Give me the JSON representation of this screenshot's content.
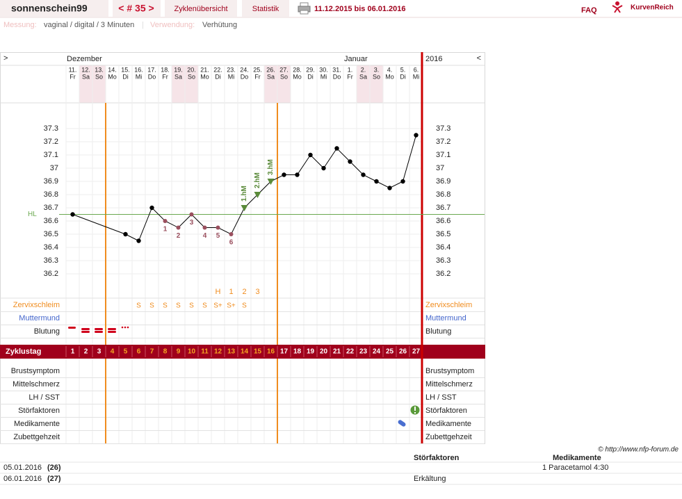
{
  "header": {
    "user": "sonnenschein99",
    "cycle": "< # 35 >",
    "tabs": [
      "Zyklenübersicht",
      "Statistik"
    ],
    "range": "11.12.2015 bis 06.01.2016",
    "faq": "FAQ",
    "brand": "KurvenReich",
    "measure_label": "Messung:",
    "measure": "vaginal / digital / 3 Minuten",
    "separator": "|",
    "use_label": "Verwendung:",
    "use": "Verhütung"
  },
  "chart_data": {
    "type": "line",
    "nav_prev": ">",
    "nav_next": "<",
    "year": "2016",
    "months": [
      {
        "label": "Dezember",
        "start_day": 1
      },
      {
        "label": "Januar",
        "start_day": 22
      }
    ],
    "dates": [
      "11.",
      "12.",
      "13.",
      "14.",
      "15.",
      "16.",
      "17.",
      "18.",
      "19.",
      "20.",
      "21.",
      "22.",
      "23.",
      "24.",
      "25.",
      "26.",
      "27.",
      "28.",
      "29.",
      "30.",
      "31.",
      "1.",
      "2.",
      "3.",
      "4.",
      "5.",
      "6."
    ],
    "weekdays": [
      "Fr",
      "Sa",
      "So",
      "Mo",
      "Di",
      "Mi",
      "Do",
      "Fr",
      "Sa",
      "So",
      "Mo",
      "Di",
      "Mi",
      "Do",
      "Fr",
      "Sa",
      "So",
      "Mo",
      "Di",
      "Mi",
      "Do",
      "Fr",
      "Sa",
      "So",
      "Mo",
      "Di",
      "Mi"
    ],
    "weekend_days": [
      2,
      3,
      9,
      10,
      16,
      17,
      23,
      24
    ],
    "cycle_days": [
      1,
      2,
      3,
      4,
      5,
      6,
      7,
      8,
      9,
      10,
      11,
      12,
      13,
      14,
      15,
      16,
      17,
      18,
      19,
      20,
      21,
      22,
      23,
      24,
      25,
      26,
      27
    ],
    "highlight_range": [
      4,
      16
    ],
    "x": [
      1,
      5,
      6,
      7,
      8,
      9,
      10,
      11,
      12,
      13,
      14,
      15,
      16,
      17,
      18,
      19,
      20,
      21,
      22,
      23,
      24,
      25,
      26,
      27
    ],
    "values": [
      36.65,
      36.5,
      36.45,
      36.7,
      36.6,
      36.55,
      36.65,
      36.55,
      36.55,
      36.5,
      36.7,
      36.8,
      36.9,
      36.95,
      36.95,
      37.1,
      37.0,
      37.15,
      37.05,
      36.95,
      36.9,
      36.85,
      36.9,
      37.25
    ],
    "ylim": [
      36.1,
      37.5
    ],
    "yticks": [
      36.2,
      36.3,
      36.4,
      36.5,
      36.6,
      36.7,
      36.8,
      36.9,
      37,
      37.1,
      37.2,
      37.3
    ],
    "color": "#000000",
    "grid": true,
    "coverline": {
      "label": "HL",
      "value": 36.65,
      "color": "#6aa84f"
    },
    "boundary_after_days": [
      3,
      16
    ],
    "boundary_color": "#f08c1e",
    "lower_six": {
      "days": [
        8,
        9,
        10,
        11,
        12,
        13
      ],
      "labels": [
        "1",
        "2",
        "3",
        "4",
        "5",
        "6"
      ],
      "color": "#9a4f5e"
    },
    "higher": {
      "days": [
        14,
        15,
        16
      ],
      "labels": [
        "1.hM",
        "2.hM",
        "3.hM"
      ],
      "color": "#5a8a3a"
    },
    "peak_labels": {
      "days": [
        12,
        13,
        14,
        15
      ],
      "labels": [
        "H",
        "1",
        "2",
        "3"
      ]
    },
    "cervical_mucus": {
      "days": [
        6,
        7,
        8,
        9,
        10,
        11,
        12,
        13,
        14
      ],
      "labels": [
        "S",
        "S",
        "S",
        "S",
        "S",
        "S",
        "S+",
        "S+",
        "S"
      ]
    },
    "upper_rows": [
      "Zervixschleim",
      "Muttermund",
      "Blutung"
    ],
    "cycle_day_title": "Zyklustag",
    "lower_rows": [
      "Brustsymptom",
      "Mittelschmerz",
      "LH / SST",
      "Störfaktoren",
      "Medikamente",
      "Zubettgehzeit"
    ]
  },
  "footer": {
    "copyright": "© http://www.nfp-forum.de",
    "columns": [
      "Störfaktoren",
      "Medikamente"
    ],
    "rows": [
      {
        "date": "05.01.2016",
        "day": "(26)",
        "medication": "1 Paracetamol 4:30"
      },
      {
        "date": "06.01.2016",
        "day": "(27)",
        "disturbance": "Erkältung"
      }
    ]
  }
}
